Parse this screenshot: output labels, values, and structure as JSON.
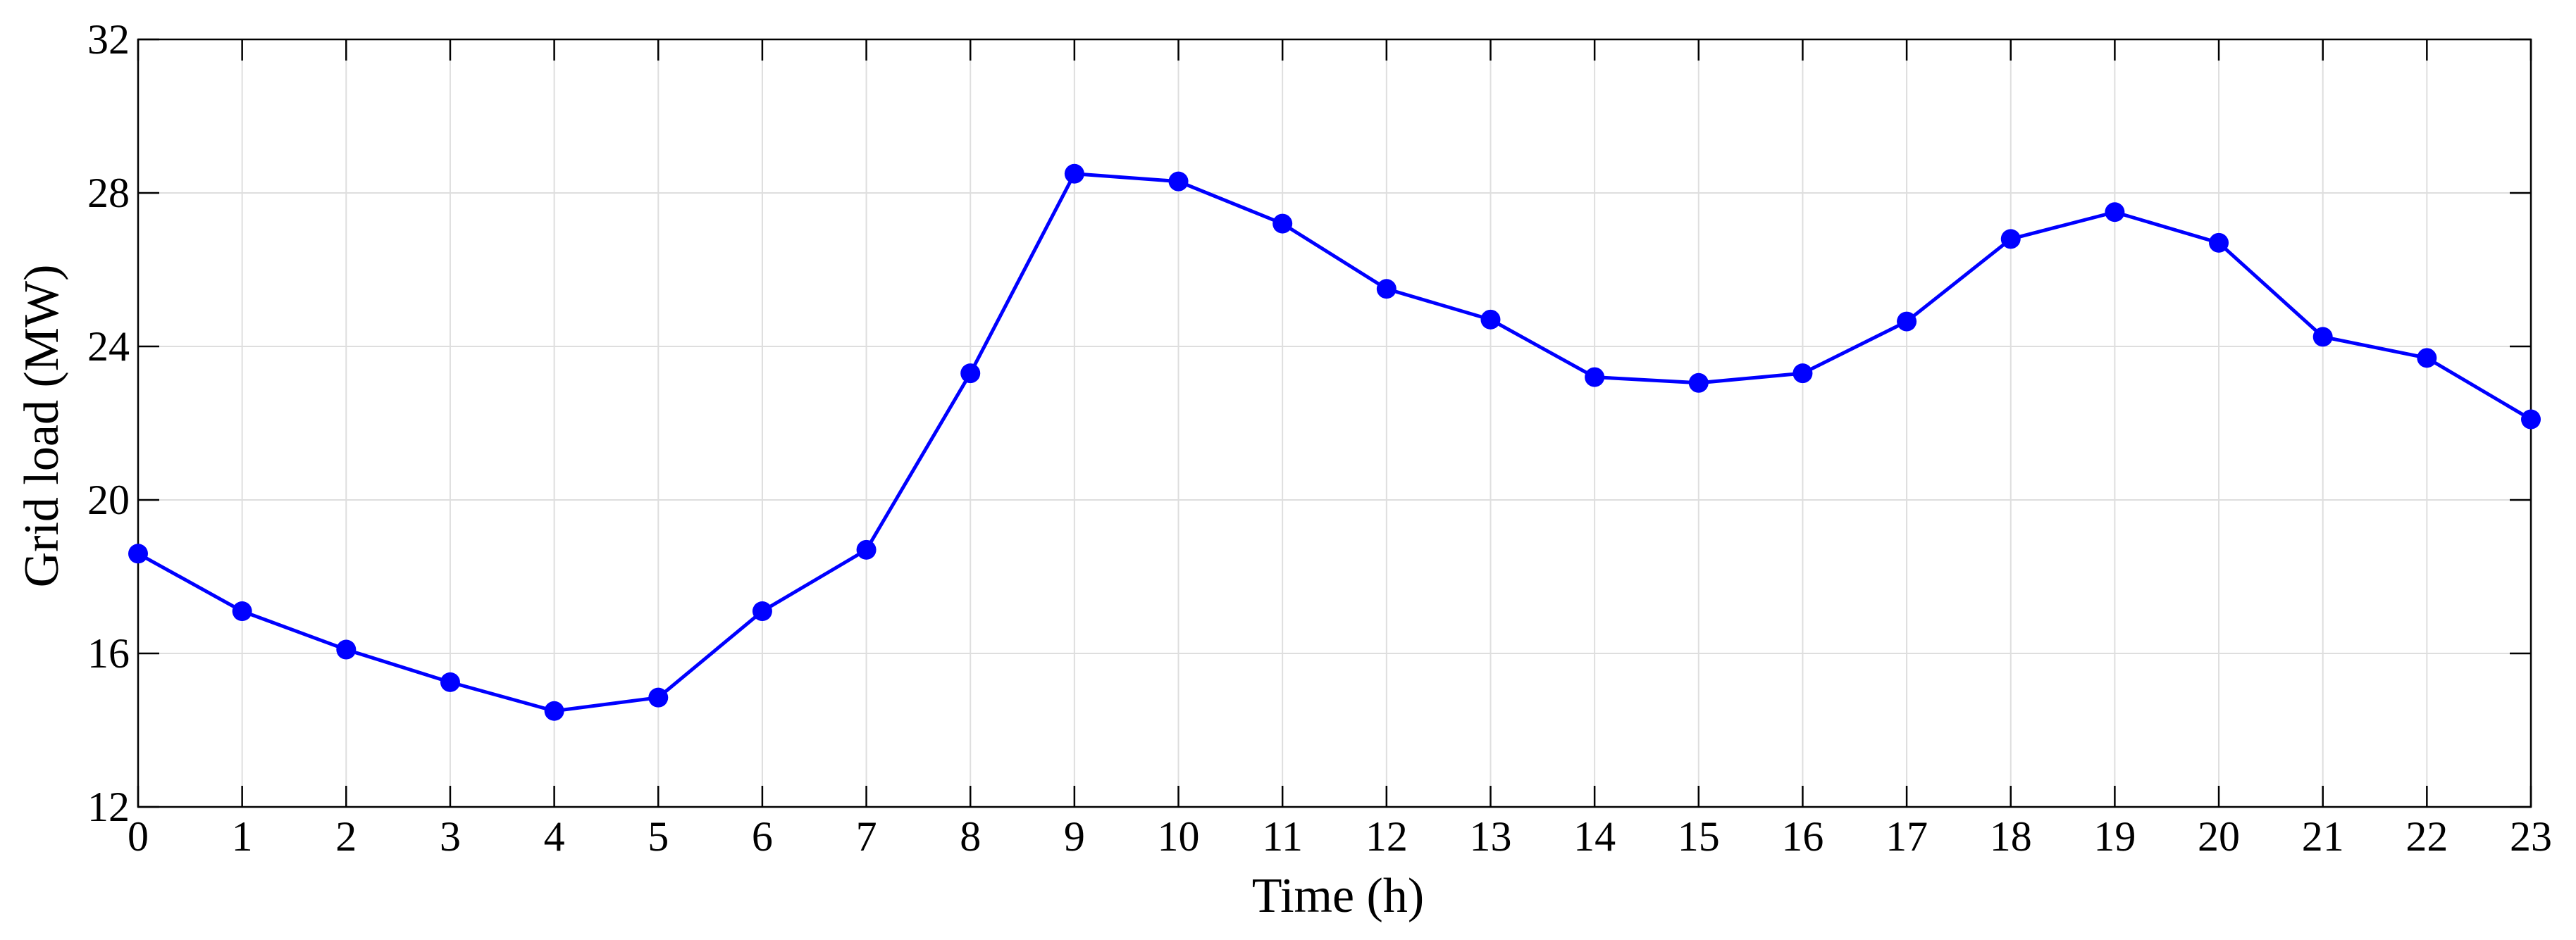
{
  "chart_data": {
    "type": "line",
    "xlabel": "Time (h)",
    "ylabel": "Grid load (MW)",
    "xlim": [
      0,
      23
    ],
    "ylim": [
      12,
      32
    ],
    "xticks": [
      0,
      1,
      2,
      3,
      4,
      5,
      6,
      7,
      8,
      9,
      10,
      11,
      12,
      13,
      14,
      15,
      16,
      17,
      18,
      19,
      20,
      21,
      22,
      23
    ],
    "yticks": [
      12,
      16,
      20,
      24,
      28,
      32
    ],
    "grid": true,
    "series": [
      {
        "color": "#0000ff",
        "marker": "circle",
        "x": [
          0,
          1,
          2,
          3,
          4,
          5,
          6,
          7,
          8,
          9,
          10,
          11,
          12,
          13,
          14,
          15,
          16,
          17,
          18,
          19,
          20,
          21,
          22,
          23
        ],
        "y": [
          18.6,
          17.1,
          16.1,
          15.25,
          14.5,
          14.85,
          17.1,
          18.7,
          23.3,
          28.5,
          28.3,
          27.2,
          25.5,
          24.7,
          23.2,
          23.05,
          23.3,
          24.65,
          26.8,
          27.5,
          26.7,
          24.25,
          23.7,
          22.1
        ]
      }
    ]
  }
}
